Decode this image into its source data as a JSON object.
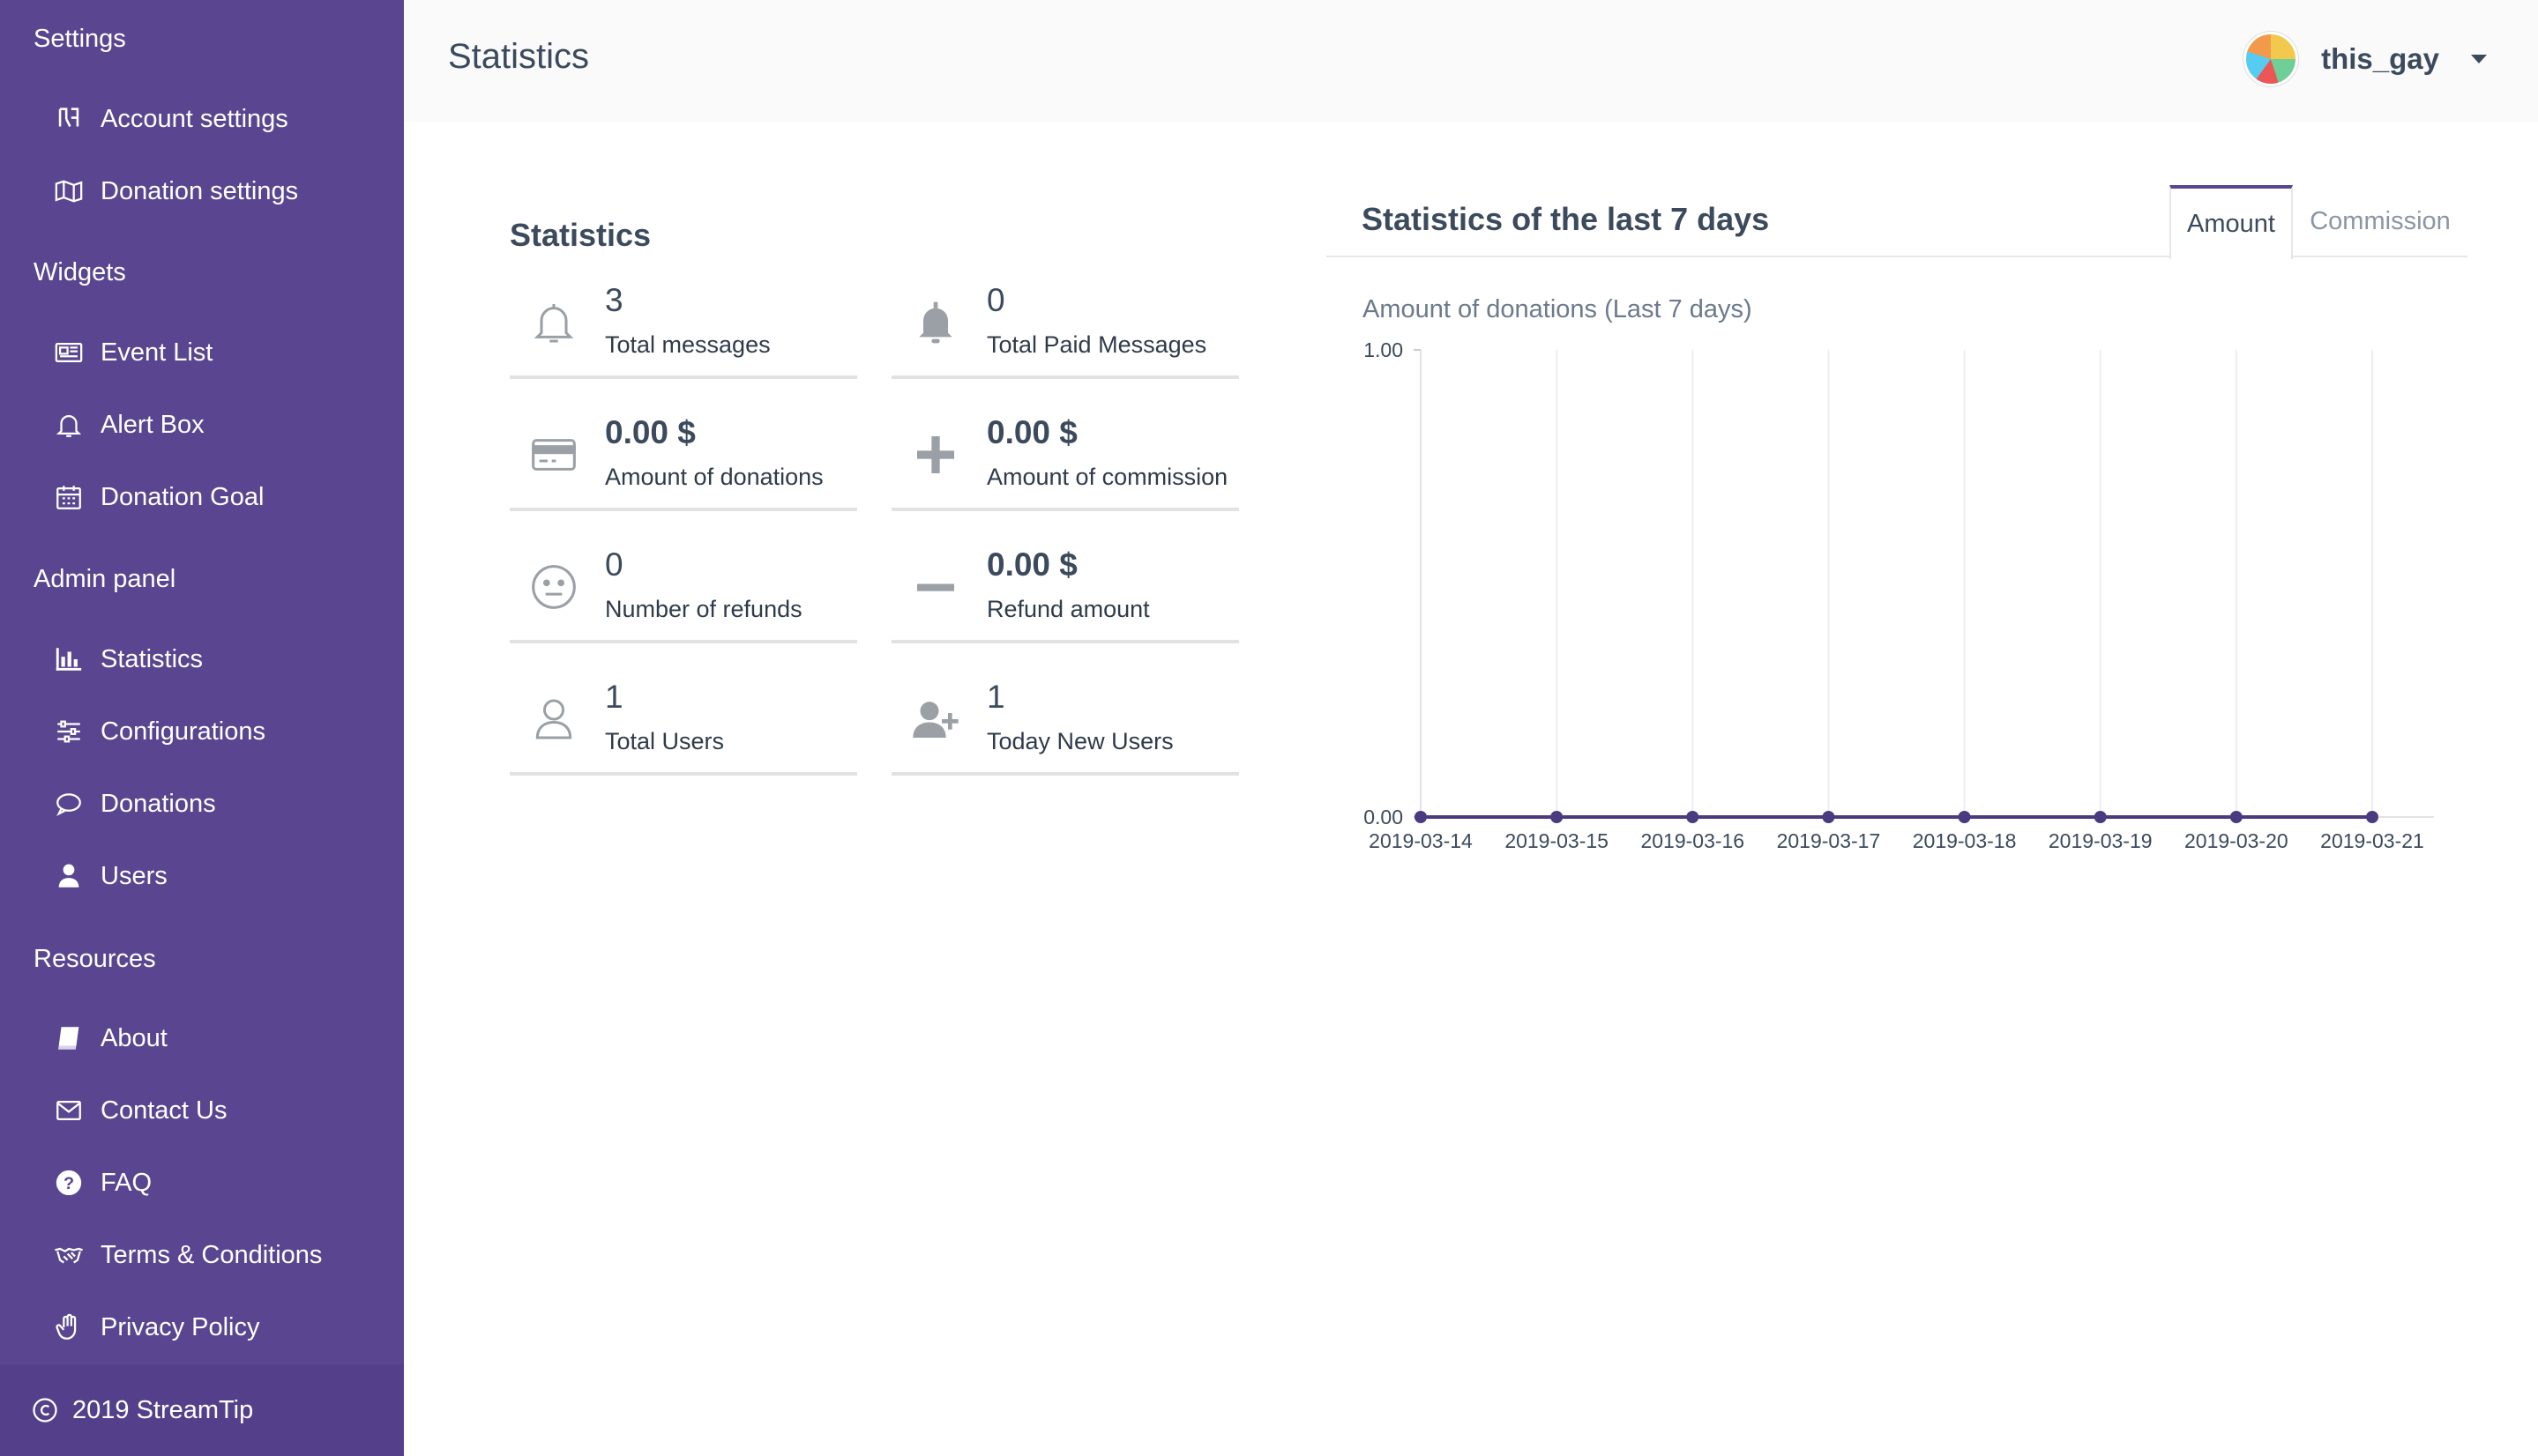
{
  "sidebar": {
    "sections": [
      {
        "label": "Settings",
        "items": [
          {
            "label": "Account settings",
            "icon": "account-settings-icon"
          },
          {
            "label": "Donation settings",
            "icon": "map-icon"
          }
        ]
      },
      {
        "label": "Widgets",
        "items": [
          {
            "label": "Event List",
            "icon": "newspaper-icon"
          },
          {
            "label": "Alert Box",
            "icon": "bell-icon"
          },
          {
            "label": "Donation Goal",
            "icon": "calendar-icon"
          }
        ]
      },
      {
        "label": "Admin panel",
        "items": [
          {
            "label": "Statistics",
            "icon": "bar-chart-icon"
          },
          {
            "label": "Configurations",
            "icon": "sliders-icon"
          },
          {
            "label": "Donations",
            "icon": "comment-icon"
          },
          {
            "label": "Users",
            "icon": "user-icon"
          }
        ]
      },
      {
        "label": "Resources",
        "items": [
          {
            "label": "About",
            "icon": "book-icon"
          },
          {
            "label": "Contact Us",
            "icon": "envelope-icon"
          },
          {
            "label": "FAQ",
            "icon": "question-circle-icon"
          },
          {
            "label": "Terms & Conditions",
            "icon": "handshake-icon"
          },
          {
            "label": "Privacy Policy",
            "icon": "hand-icon"
          }
        ]
      }
    ],
    "footer": "2019 StreamTip"
  },
  "header": {
    "title": "Statistics",
    "username": "this_gay"
  },
  "stats": {
    "title": "Statistics",
    "tiles": [
      {
        "value": "3",
        "label": "Total messages",
        "icon": "bell-outline-icon"
      },
      {
        "value": "0",
        "label": "Total Paid Messages",
        "icon": "bell-solid-icon"
      },
      {
        "value": "0.00 $",
        "label": "Amount of donations",
        "icon": "credit-card-icon"
      },
      {
        "value": "0.00 $",
        "label": "Amount of commission",
        "icon": "plus-icon"
      },
      {
        "value": "0",
        "label": "Number of refunds",
        "icon": "meh-face-icon"
      },
      {
        "value": "0.00 $",
        "label": "Refund amount",
        "icon": "minus-icon"
      },
      {
        "value": "1",
        "label": "Total Users",
        "icon": "user-outline-icon"
      },
      {
        "value": "1",
        "label": "Today New Users",
        "icon": "user-plus-icon"
      }
    ]
  },
  "chart_card": {
    "title": "Statistics of the last 7 days",
    "tabs": [
      "Amount",
      "Commission"
    ],
    "active_tab": "Amount"
  },
  "colors": {
    "sidebar": "#5a4690",
    "accent": "#5a4690",
    "series": "#4a3a80"
  },
  "chart_data": {
    "type": "line",
    "title": "Amount of donations (Last 7 days)",
    "xlabel": "",
    "ylabel": "",
    "x": [
      "2019-03-14",
      "2019-03-15",
      "2019-03-16",
      "2019-03-17",
      "2019-03-18",
      "2019-03-19",
      "2019-03-20",
      "2019-03-21"
    ],
    "series": [
      {
        "values": [
          0,
          0,
          0,
          0,
          0,
          0,
          0,
          0
        ]
      }
    ],
    "ylim": [
      0,
      1
    ],
    "yticks": [
      "0.00",
      "1.00"
    ],
    "grid": true,
    "legend": "none"
  }
}
